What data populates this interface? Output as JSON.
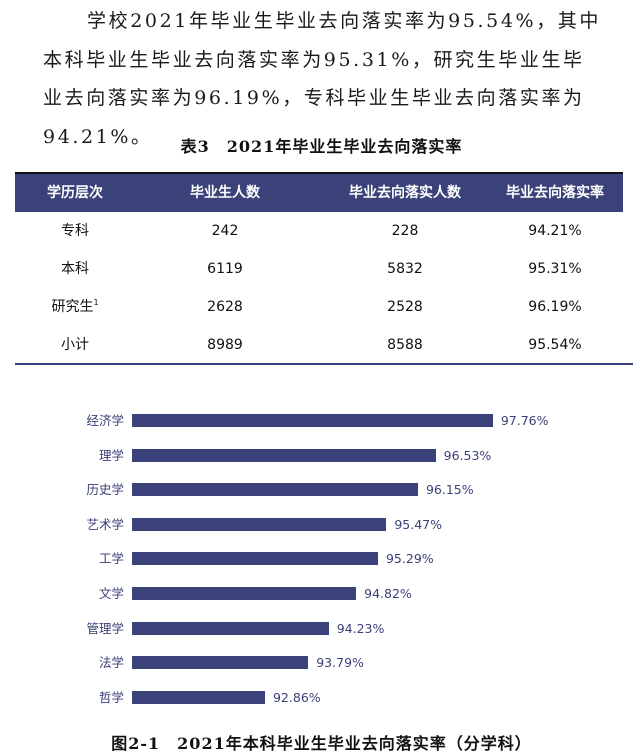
{
  "paragraph": {
    "text": "学校2021年毕业生毕业去向落实率为95.54%，其中本科毕业生毕业去向落实率为95.31%，研究生毕业生毕业去向落实率为96.19%，专科毕业生毕业去向落实率为94.21%。"
  },
  "table": {
    "caption": "表3　2021年毕业生毕业去向落实率",
    "header_color": "#3b4179",
    "columns": [
      "学历层次",
      "毕业生人数",
      "毕业去向落实人数",
      "毕业去向落实率"
    ],
    "rows": [
      {
        "level": "专科",
        "footnote": "",
        "graduates": "242",
        "placed": "228",
        "rate": "94.21%"
      },
      {
        "level": "本科",
        "footnote": "",
        "graduates": "6119",
        "placed": "5832",
        "rate": "95.31%"
      },
      {
        "level": "研究生",
        "footnote": "1",
        "graduates": "2628",
        "placed": "2528",
        "rate": "96.19%"
      },
      {
        "level": "小计",
        "footnote": "",
        "graduates": "8989",
        "placed": "8588",
        "rate": "95.54%"
      }
    ]
  },
  "chart_data": {
    "type": "bar",
    "orientation": "horizontal",
    "title": "图2-1　2021年本科毕业生毕业去向落实率（分学科）",
    "categories": [
      "经济学",
      "理学",
      "历史学",
      "艺术学",
      "工学",
      "文学",
      "管理学",
      "法学",
      "哲学"
    ],
    "values": [
      97.76,
      96.53,
      96.15,
      95.47,
      95.29,
      94.82,
      94.23,
      93.79,
      92.86
    ],
    "value_labels": [
      "97.76%",
      "96.53%",
      "96.15%",
      "95.47%",
      "95.29%",
      "94.82%",
      "94.23%",
      "93.79%",
      "92.86%"
    ],
    "xlabel": "",
    "ylabel": "",
    "xlim": [
      90,
      100
    ],
    "grid": false,
    "legend": "none",
    "bar_color": "#3b4179"
  },
  "figure": {
    "caption": "图2-1　2021年本科毕业生毕业去向落实率（分学科）"
  }
}
